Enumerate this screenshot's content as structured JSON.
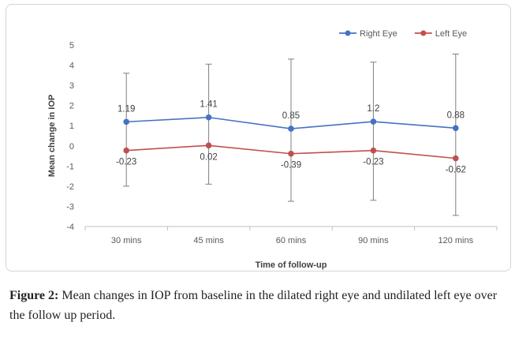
{
  "chart_data": {
    "type": "line",
    "xlabel": "Time of follow-up",
    "ylabel": "Mean change in IOP",
    "categories": [
      "30 mins",
      "45 mins",
      "60 mins",
      "90 mins",
      "120 mins"
    ],
    "ylim": [
      -4,
      5
    ],
    "yticks": [
      "5",
      "4",
      "3",
      "2",
      "1",
      "0",
      "-1",
      "-2",
      "-3",
      "-4"
    ],
    "grid": false,
    "legend_position": "top-right",
    "series": [
      {
        "name": "Right Eye",
        "color": "#4472C4",
        "values": [
          1.19,
          1.41,
          0.85,
          1.2,
          0.88
        ],
        "labels": [
          "1.19",
          "1.41",
          "0.85",
          "1.2",
          "0.88"
        ],
        "error_low": [
          -2.0,
          -1.9,
          -2.75,
          -2.7,
          -3.45
        ],
        "error_high": [
          3.6,
          4.05,
          4.3,
          4.15,
          4.55
        ]
      },
      {
        "name": "Left Eye",
        "color": "#C0504D",
        "values": [
          -0.23,
          0.02,
          -0.39,
          -0.23,
          -0.62
        ],
        "labels": [
          "-0.23",
          "0.02",
          "-0.39",
          "-0.23",
          "-0.62"
        ]
      }
    ]
  },
  "caption": {
    "label": "Figure 2:",
    "text": " Mean changes in IOP from baseline in the dilated right eye and undilated left eye over the follow up period."
  }
}
